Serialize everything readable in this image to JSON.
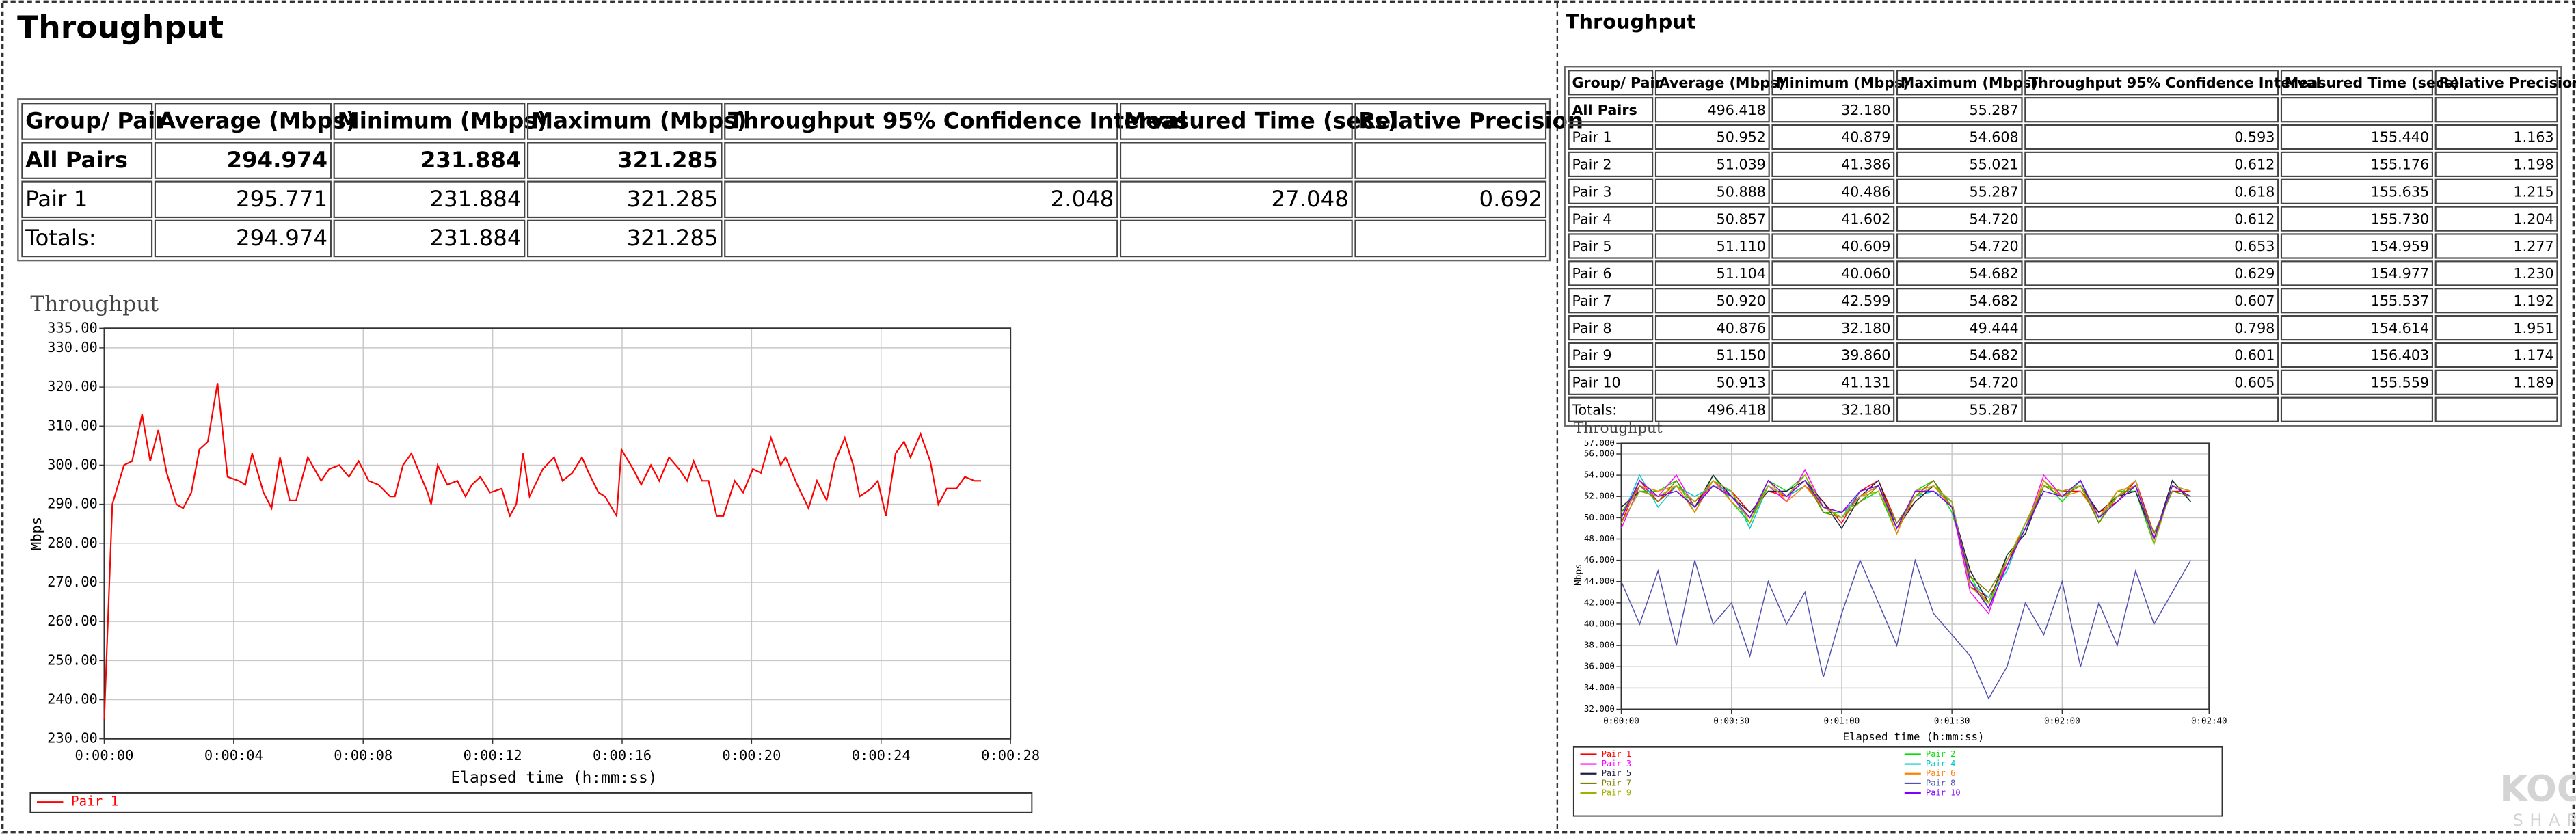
{
  "panels": [
    {
      "title": "Throughput",
      "table": {
        "header": [
          "Group/ Pair",
          "Average (Mbps)",
          "Minimum (Mbps)",
          "Maximum (Mbps)",
          "Throughput 95% Confidence Interval",
          "Measured Time (secs)",
          "Relative Precision"
        ],
        "rows": [
          [
            "All Pairs",
            "294.974",
            "231.884",
            "321.285",
            null,
            null,
            null
          ],
          [
            "Pair 1",
            "295.771",
            "231.884",
            "321.285",
            "2.048",
            "27.048",
            "0.692"
          ],
          [
            "Totals:",
            "294.974",
            "231.884",
            "321.285",
            null,
            null,
            null
          ]
        ]
      }
    },
    {
      "title": "Throughput",
      "table": {
        "header": [
          "Group/ Pair",
          "Average (Mbps)",
          "Minimum (Mbps)",
          "Maximum (Mbps)",
          "Throughput 95% Confidence Interval",
          "Measured Time (secs)",
          "Relative Precision"
        ],
        "rows": [
          [
            "All Pairs",
            "496.418",
            "32.180",
            "55.287",
            null,
            null,
            null
          ],
          [
            "Pair 1",
            "50.952",
            "40.879",
            "54.608",
            "0.593",
            "155.440",
            "1.163"
          ],
          [
            "Pair 2",
            "51.039",
            "41.386",
            "55.021",
            "0.612",
            "155.176",
            "1.198"
          ],
          [
            "Pair 3",
            "50.888",
            "40.486",
            "55.287",
            "0.618",
            "155.635",
            "1.215"
          ],
          [
            "Pair 4",
            "50.857",
            "41.602",
            "54.720",
            "0.612",
            "155.730",
            "1.204"
          ],
          [
            "Pair 5",
            "51.110",
            "40.609",
            "54.720",
            "0.653",
            "154.959",
            "1.277"
          ],
          [
            "Pair 6",
            "51.104",
            "40.060",
            "54.682",
            "0.629",
            "154.977",
            "1.230"
          ],
          [
            "Pair 7",
            "50.920",
            "42.599",
            "54.682",
            "0.607",
            "155.537",
            "1.192"
          ],
          [
            "Pair 8",
            "40.876",
            "32.180",
            "49.444",
            "0.798",
            "154.614",
            "1.951"
          ],
          [
            "Pair 9",
            "51.150",
            "39.860",
            "54.682",
            "0.601",
            "156.403",
            "1.174"
          ],
          [
            "Pair 10",
            "50.913",
            "41.131",
            "54.720",
            "0.605",
            "155.559",
            "1.189"
          ],
          [
            "Totals:",
            "496.418",
            "32.180",
            "55.287",
            null,
            null,
            null
          ]
        ]
      }
    }
  ],
  "chart_data": [
    {
      "type": "line",
      "title": "Throughput",
      "x_label": "Elapsed time (h:mm:ss)",
      "y_label": "Mbps",
      "grid": true,
      "xlim": [
        0,
        28
      ],
      "xticks": [
        {
          "value": 0,
          "label": "0:00:00"
        },
        {
          "value": 4,
          "label": "0:00:04"
        },
        {
          "value": 8,
          "label": "0:00:08"
        },
        {
          "value": 12,
          "label": "0:00:12"
        },
        {
          "value": 16,
          "label": "0:00:16"
        },
        {
          "value": 20,
          "label": "0:00:20"
        },
        {
          "value": 24,
          "label": "0:00:24"
        },
        {
          "value": 28,
          "label": "0:00:28"
        }
      ],
      "ylim": [
        230,
        335
      ],
      "yticks": [
        {
          "value": 230,
          "label": "230.00"
        },
        {
          "value": 240,
          "label": "240.00"
        },
        {
          "value": 250,
          "label": "250.00"
        },
        {
          "value": 260,
          "label": "260.00"
        },
        {
          "value": 270,
          "label": "270.00"
        },
        {
          "value": 280,
          "label": "280.00"
        },
        {
          "value": 290,
          "label": "290.00"
        },
        {
          "value": 300,
          "label": "300.00"
        },
        {
          "value": 310,
          "label": "310.00"
        },
        {
          "value": 320,
          "label": "320.00"
        },
        {
          "value": 330,
          "label": "330.00"
        },
        {
          "value": 335,
          "label": "335.00"
        }
      ],
      "x": [
        0,
        0.25,
        0.61,
        0.86,
        1.17,
        1.42,
        1.67,
        1.93,
        2.23,
        2.44,
        2.69,
        2.94,
        3.2,
        3.5,
        3.81,
        4.16,
        4.36,
        4.57,
        4.92,
        5.17,
        5.43,
        5.73,
        5.93,
        6.29,
        6.7,
        6.95,
        7.26,
        7.56,
        7.86,
        8.17,
        8.47,
        8.83,
        8.98,
        9.23,
        9.49,
        9.99,
        10.1,
        10.3,
        10.6,
        10.91,
        11.16,
        11.36,
        11.62,
        11.92,
        12.28,
        12.53,
        12.73,
        12.94,
        13.14,
        13.55,
        13.9,
        14.16,
        14.46,
        14.76,
        14.97,
        15.27,
        15.47,
        15.83,
        15.98,
        16.34,
        16.59,
        16.89,
        17.15,
        17.45,
        17.76,
        18.01,
        18.21,
        18.47,
        18.67,
        18.92,
        19.13,
        19.48,
        19.74,
        20.04,
        20.29,
        20.6,
        20.9,
        21.05,
        21.41,
        21.76,
        22.02,
        22.32,
        22.58,
        22.88,
        23.14,
        23.34,
        23.69,
        23.9,
        24.15,
        24.45,
        24.71,
        24.91,
        25.22,
        25.52,
        25.77,
        26.03,
        26.33,
        26.59,
        26.89,
        27.09
      ],
      "series": [
        {
          "name": "Pair 1",
          "color": "#ff0000",
          "values": [
            235,
            290,
            300,
            301,
            313,
            301,
            309,
            298,
            290,
            289,
            293,
            304,
            306,
            321,
            297,
            296,
            295,
            303,
            293,
            289,
            302,
            291,
            291,
            302,
            296,
            299,
            300,
            297,
            301,
            296,
            295,
            292,
            292,
            300,
            303,
            293,
            290,
            300,
            295,
            296,
            292,
            295,
            297,
            293,
            294,
            287,
            290,
            303,
            292,
            299,
            302,
            296,
            298,
            302,
            298,
            293,
            292,
            287,
            304,
            299,
            295,
            300,
            296,
            302,
            299,
            296,
            301,
            296,
            296,
            287,
            287,
            296,
            293,
            299,
            298,
            307,
            300,
            302,
            295,
            289,
            296,
            291,
            301,
            307,
            300,
            292,
            294,
            296,
            287,
            303,
            306,
            302,
            308,
            301,
            290,
            294,
            294,
            297,
            296,
            296
          ]
        }
      ]
    },
    {
      "type": "line",
      "title": "Throughput",
      "x_label": "Elapsed time (h:mm:ss)",
      "y_label": "Mbps",
      "grid": true,
      "xlim": [
        0,
        160
      ],
      "xticks": [
        {
          "value": 0,
          "label": "0:00:00"
        },
        {
          "value": 30,
          "label": "0:00:30"
        },
        {
          "value": 60,
          "label": "0:01:00"
        },
        {
          "value": 90,
          "label": "0:01:30"
        },
        {
          "value": 120,
          "label": "0:02:00"
        },
        {
          "value": 160,
          "label": "0:02:40"
        }
      ],
      "ylim": [
        32,
        57
      ],
      "yticks": [
        {
          "value": 32,
          "label": "32.000"
        },
        {
          "value": 34,
          "label": "34.000"
        },
        {
          "value": 36,
          "label": "36.000"
        },
        {
          "value": 38,
          "label": "38.000"
        },
        {
          "value": 40,
          "label": "40.000"
        },
        {
          "value": 42,
          "label": "42.000"
        },
        {
          "value": 44,
          "label": "44.000"
        },
        {
          "value": 46,
          "label": "46.000"
        },
        {
          "value": 48,
          "label": "48.000"
        },
        {
          "value": 50,
          "label": "50.000"
        },
        {
          "value": 52,
          "label": "52.000"
        },
        {
          "value": 54,
          "label": "54.000"
        },
        {
          "value": 56,
          "label": "56.000"
        },
        {
          "value": 57,
          "label": "57.000"
        }
      ],
      "x": [
        0,
        5,
        10,
        15,
        20,
        25,
        30,
        35,
        40,
        45,
        50,
        55,
        60,
        65,
        70,
        75,
        80,
        85,
        90,
        95,
        100,
        105,
        110,
        115,
        120,
        125,
        130,
        135,
        140,
        145,
        150,
        155
      ],
      "series": [
        {
          "name": "Pair 1",
          "color": "#ff0000",
          "values": [
            49.5,
            53.5,
            51.5,
            53,
            51.5,
            53,
            52.5,
            50.5,
            52.5,
            52,
            53,
            51.5,
            49.5,
            52.5,
            53.5,
            49.5,
            51.5,
            53,
            51.5,
            43.5,
            42.5,
            45.5,
            49.5,
            53,
            52.5,
            52.5,
            50.5,
            51.5,
            53.5,
            48.5,
            52.5,
            52.5
          ]
        },
        {
          "name": "Pair 2",
          "color": "#00e000",
          "values": [
            50.5,
            52.5,
            52.5,
            53.5,
            50.5,
            54,
            51.5,
            49.5,
            53.5,
            52.5,
            54,
            50.5,
            50.5,
            51.5,
            52.5,
            48.5,
            52.5,
            53.5,
            50.5,
            44.5,
            41.5,
            46.5,
            48.5,
            53.5,
            51.5,
            53.5,
            49.5,
            52.5,
            52.5,
            47.5,
            53.5,
            51.5
          ]
        },
        {
          "name": "Pair 3",
          "color": "#ff00ff",
          "values": [
            49,
            53,
            52,
            54,
            51,
            53.5,
            52,
            50,
            53,
            51.5,
            54.5,
            51,
            50.5,
            52,
            53,
            49,
            52,
            53.5,
            51,
            43,
            41,
            46,
            49,
            54,
            52,
            53,
            50,
            52,
            53.5,
            48,
            53,
            52.5
          ]
        },
        {
          "name": "Pair 4",
          "color": "#00c8c8",
          "values": [
            50,
            54,
            51,
            53,
            52,
            53,
            52.5,
            49,
            53,
            52,
            53,
            51,
            50,
            52.5,
            53,
            49.5,
            52,
            52.5,
            51.5,
            44,
            42.5,
            45,
            49.5,
            52.5,
            52,
            53.5,
            50,
            51.5,
            53,
            48.5,
            52.5,
            52
          ]
        },
        {
          "name": "Pair 5",
          "color": "#202040",
          "values": [
            51,
            52.5,
            52,
            52.5,
            51,
            54,
            52,
            50.5,
            52.5,
            52.5,
            53.5,
            51.5,
            49,
            52,
            53.5,
            49,
            51.5,
            53,
            51,
            45,
            42,
            46.5,
            48.5,
            53,
            52.5,
            53,
            50.5,
            52,
            52.5,
            48,
            53.5,
            51.5
          ]
        },
        {
          "name": "Pair 6",
          "color": "#ff8000",
          "values": [
            50,
            53,
            52.5,
            53,
            50.5,
            53.5,
            51.5,
            50,
            53.5,
            51.5,
            53,
            51,
            50,
            52,
            53,
            48.5,
            52.5,
            53,
            51,
            44,
            42,
            46,
            49,
            53.5,
            52,
            52.5,
            50,
            52.5,
            53,
            48,
            53,
            52
          ]
        },
        {
          "name": "Pair 7",
          "color": "#808000",
          "values": [
            50.5,
            53,
            51.5,
            53.5,
            51,
            53,
            52,
            50,
            53,
            52,
            53.5,
            50.5,
            50,
            51.5,
            53,
            49.5,
            52,
            53.5,
            51,
            44.5,
            43,
            46,
            49,
            53,
            52,
            53,
            49.5,
            52,
            53,
            48.5,
            52.5,
            52
          ]
        },
        {
          "name": "Pair 8",
          "color": "#5050b0",
          "values": [
            44,
            40,
            45,
            38,
            46,
            40,
            42,
            37,
            44,
            40,
            43,
            35,
            41,
            46,
            42,
            38,
            46,
            41,
            39,
            37,
            33,
            36,
            42,
            39,
            44,
            36,
            42,
            38,
            45,
            40,
            43,
            46
          ]
        },
        {
          "name": "Pair 9",
          "color": "#a0b000",
          "values": [
            49.5,
            52.5,
            52,
            53,
            51.5,
            53.5,
            52.5,
            49.5,
            53,
            52,
            54,
            51,
            50,
            52,
            52.5,
            49,
            52,
            53,
            51.5,
            43.5,
            42,
            46,
            49.5,
            53,
            52.5,
            53,
            50,
            52,
            53.5,
            47.5,
            53,
            52.5
          ]
        },
        {
          "name": "Pair 10",
          "color": "#8000ff",
          "values": [
            50,
            53.5,
            52,
            52.5,
            51,
            53,
            52,
            50,
            53.5,
            52,
            53.5,
            51,
            50.5,
            52.5,
            53,
            49,
            52.5,
            52.5,
            51,
            44,
            41.5,
            45.5,
            49,
            52.5,
            52,
            53.5,
            50,
            51.5,
            53,
            48,
            53,
            52
          ]
        }
      ]
    }
  ],
  "watermark": [
    "KOOL",
    "SHARE"
  ]
}
